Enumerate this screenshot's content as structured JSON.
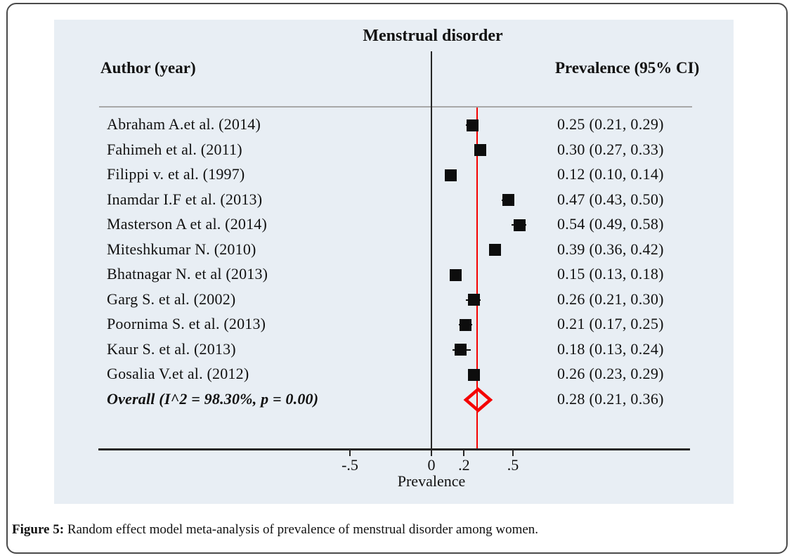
{
  "caption": {
    "label": "Figure 5:",
    "text": " Random effect model meta-analysis of prevalence of menstrual disorder among women."
  },
  "colors": {
    "plot_bg": "#e8eef4",
    "marker": "#0d0d0d",
    "axis": "#262626",
    "overall_red": "#f40000",
    "header_rule": "#a8a8a8",
    "frame_border": "#4a4a4a",
    "text": "#111111"
  },
  "chart_data": {
    "type": "forest",
    "title": "Menstrual disorder",
    "columns": [
      "Author (year)",
      "Prevalence (95% CI)"
    ],
    "xlabel": "Prevalence",
    "x_ticks": [
      -0.5,
      0,
      0.2,
      0.5
    ],
    "x_tick_labels": [
      "-.5",
      "0",
      ".2",
      ".5"
    ],
    "x_range": [
      -0.85,
      1.05
    ],
    "zero_line": 0,
    "overall_line": 0.28,
    "legend_position": "none",
    "grid": false,
    "studies": [
      {
        "author": "Abraham A.et al. (2014)",
        "est": 0.25,
        "lo": 0.21,
        "hi": 0.29,
        "ci_text": "0.25 (0.21, 0.29)"
      },
      {
        "author": "Fahimeh et al. (2011)",
        "est": 0.3,
        "lo": 0.27,
        "hi": 0.33,
        "ci_text": "0.30 (0.27, 0.33)"
      },
      {
        "author": "Filippi v. et al. (1997)",
        "est": 0.12,
        "lo": 0.1,
        "hi": 0.14,
        "ci_text": "0.12 (0.10, 0.14)"
      },
      {
        "author": "Inamdar I.F et al. (2013)",
        "est": 0.47,
        "lo": 0.43,
        "hi": 0.5,
        "ci_text": "0.47 (0.43, 0.50)"
      },
      {
        "author": "Masterson A et al. (2014)",
        "est": 0.54,
        "lo": 0.49,
        "hi": 0.58,
        "ci_text": "0.54 (0.49, 0.58)"
      },
      {
        "author": "Miteshkumar N. (2010)",
        "est": 0.39,
        "lo": 0.36,
        "hi": 0.42,
        "ci_text": "0.39 (0.36, 0.42)"
      },
      {
        "author": "Bhatnagar N. et al (2013)",
        "est": 0.15,
        "lo": 0.13,
        "hi": 0.18,
        "ci_text": "0.15 (0.13, 0.18)"
      },
      {
        "author": "Garg S. et al.  (2002)",
        "est": 0.26,
        "lo": 0.21,
        "hi": 0.3,
        "ci_text": "0.26 (0.21, 0.30)"
      },
      {
        "author": "Poornima S. et al. (2013)",
        "est": 0.21,
        "lo": 0.17,
        "hi": 0.25,
        "ci_text": "0.21 (0.17, 0.25)"
      },
      {
        "author": "Kaur S. et al. (2013)",
        "est": 0.18,
        "lo": 0.13,
        "hi": 0.24,
        "ci_text": "0.18 (0.13, 0.24)"
      },
      {
        "author": "Gosalia V.et al. (2012)",
        "est": 0.26,
        "lo": 0.23,
        "hi": 0.29,
        "ci_text": "0.26 (0.23, 0.29)"
      }
    ],
    "overall": {
      "author": "Overall (I^2 = 98.30%, p = 0.00)",
      "est": 0.28,
      "lo": 0.21,
      "hi": 0.36,
      "ci_text": "0.28 (0.21, 0.36)"
    }
  }
}
